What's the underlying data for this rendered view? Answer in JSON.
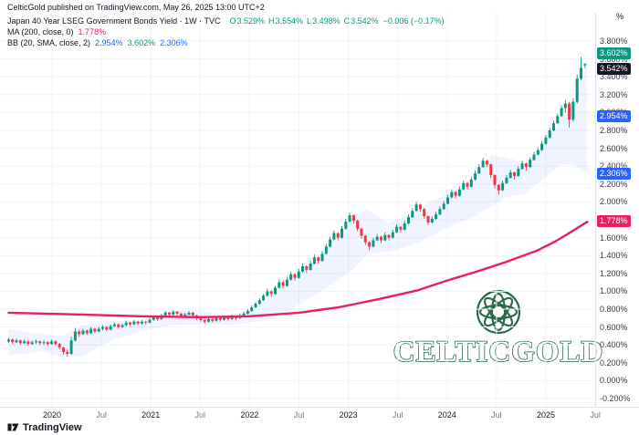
{
  "attribution": "CelticGold published on TradingView.com, May 26, 2025 13:00 UTC+2",
  "legend": {
    "symbol": "Japan 40 Year LSEG Government Bonds Yield · 1W · TVC",
    "ohlc": [
      {
        "k": "O",
        "v": "3.529%"
      },
      {
        "k": "H",
        "v": "3.554%"
      },
      {
        "k": "L",
        "v": "3.498%"
      },
      {
        "k": "C",
        "v": "3.542%"
      }
    ],
    "ohlc_color": "#089981",
    "change": "−0.006 (−0.17%)",
    "change_color": "#089981",
    "ma_label": "MA (200, close, 0)",
    "ma_value": "1.778%",
    "ma_color": "#e91e63",
    "bb_label": "BB (20, SMA, close, 2)",
    "bb_values": [
      {
        "text": "2.954%",
        "color": "#2962ff"
      },
      {
        "text": "3.602%",
        "color": "#089981"
      },
      {
        "text": "2.306%",
        "color": "#2962ff"
      }
    ]
  },
  "price_axis": {
    "unit": "%",
    "badges": [
      {
        "text": "3.602%",
        "value": 3.602,
        "color": "#089981",
        "dy": -5
      },
      {
        "text": "3.542%",
        "value": 3.542,
        "color": "#131722",
        "dy": 6
      },
      {
        "text": "2.954%",
        "value": 2.954,
        "color": "#2962ff",
        "dy": 0
      },
      {
        "text": "2.306%",
        "value": 2.306,
        "color": "#2962ff",
        "dy": 0
      },
      {
        "text": "1.778%",
        "value": 1.778,
        "color": "#e91e63",
        "dy": 0
      }
    ]
  },
  "footer": {
    "brand": "TradingView"
  },
  "watermark": {
    "text": "CELTICGOLD",
    "color": "#2e6b4e"
  },
  "chart_data": {
    "type": "candlestick",
    "title": "Japan 40 Year LSEG Government Bonds Yield",
    "timeframe": "1W",
    "exchange": "TVC",
    "ylabel": "%",
    "grid": true,
    "x_range": [
      2019.55,
      2025.62
    ],
    "y_range": [
      -0.28,
      3.99
    ],
    "y_ticks": [
      3.8,
      3.6,
      3.4,
      3.2,
      3.0,
      2.8,
      2.6,
      2.4,
      2.2,
      2.0,
      1.8,
      1.6,
      1.4,
      1.2,
      1.0,
      0.8,
      0.6,
      0.4,
      0.2,
      0.0,
      -0.2
    ],
    "time_ticks": [
      {
        "t": 2020.0,
        "label": "2020",
        "major": true
      },
      {
        "t": 2020.5,
        "label": "Jul",
        "major": false
      },
      {
        "t": 2021.0,
        "label": "2021",
        "major": true
      },
      {
        "t": 2021.5,
        "label": "Jul",
        "major": false
      },
      {
        "t": 2022.0,
        "label": "2022",
        "major": true
      },
      {
        "t": 2022.5,
        "label": "Jul",
        "major": false
      },
      {
        "t": 2023.0,
        "label": "2023",
        "major": true
      },
      {
        "t": 2023.5,
        "label": "Jul",
        "major": false
      },
      {
        "t": 2024.0,
        "label": "2024",
        "major": true
      },
      {
        "t": 2024.5,
        "label": "Jul",
        "major": false
      },
      {
        "t": 2025.0,
        "label": "2025",
        "major": true
      },
      {
        "t": 2025.5,
        "label": "Jul",
        "major": false
      }
    ],
    "up_color": "#089981",
    "down_color": "#f23645",
    "last": {
      "o": 3.529,
      "h": 3.554,
      "l": 3.498,
      "c": 3.542,
      "change": -0.006,
      "change_pct": -0.17
    },
    "candles_t0": 2019.56,
    "candles_dt": 0.0397,
    "candles": [
      [
        0.44,
        0.48,
        0.42,
        0.46
      ],
      [
        0.46,
        0.47,
        0.41,
        0.43
      ],
      [
        0.43,
        0.47,
        0.42,
        0.45
      ],
      [
        0.45,
        0.46,
        0.4,
        0.42
      ],
      [
        0.42,
        0.46,
        0.41,
        0.44
      ],
      [
        0.44,
        0.45,
        0.39,
        0.41
      ],
      [
        0.41,
        0.45,
        0.4,
        0.43
      ],
      [
        0.43,
        0.46,
        0.41,
        0.44
      ],
      [
        0.44,
        0.45,
        0.4,
        0.42
      ],
      [
        0.42,
        0.45,
        0.4,
        0.43
      ],
      [
        0.43,
        0.44,
        0.39,
        0.41
      ],
      [
        0.41,
        0.46,
        0.4,
        0.44
      ],
      [
        0.44,
        0.45,
        0.39,
        0.41
      ],
      [
        0.41,
        0.42,
        0.35,
        0.37
      ],
      [
        0.37,
        0.38,
        0.29,
        0.32
      ],
      [
        0.32,
        0.35,
        0.27,
        0.3
      ],
      [
        0.3,
        0.49,
        0.29,
        0.45
      ],
      [
        0.45,
        0.59,
        0.44,
        0.55
      ],
      [
        0.55,
        0.57,
        0.49,
        0.52
      ],
      [
        0.52,
        0.58,
        0.51,
        0.56
      ],
      [
        0.56,
        0.57,
        0.51,
        0.53
      ],
      [
        0.53,
        0.6,
        0.52,
        0.58
      ],
      [
        0.58,
        0.59,
        0.53,
        0.55
      ],
      [
        0.55,
        0.6,
        0.54,
        0.58
      ],
      [
        0.58,
        0.62,
        0.56,
        0.6
      ],
      [
        0.6,
        0.61,
        0.55,
        0.57
      ],
      [
        0.57,
        0.63,
        0.56,
        0.61
      ],
      [
        0.61,
        0.65,
        0.6,
        0.63
      ],
      [
        0.63,
        0.64,
        0.58,
        0.6
      ],
      [
        0.6,
        0.64,
        0.59,
        0.62
      ],
      [
        0.62,
        0.67,
        0.61,
        0.65
      ],
      [
        0.65,
        0.66,
        0.61,
        0.63
      ],
      [
        0.63,
        0.68,
        0.62,
        0.66
      ],
      [
        0.66,
        0.67,
        0.62,
        0.64
      ],
      [
        0.64,
        0.68,
        0.63,
        0.66
      ],
      [
        0.66,
        0.67,
        0.63,
        0.65
      ],
      [
        0.65,
        0.7,
        0.64,
        0.68
      ],
      [
        0.68,
        0.73,
        0.67,
        0.71
      ],
      [
        0.71,
        0.72,
        0.67,
        0.69
      ],
      [
        0.69,
        0.75,
        0.68,
        0.73
      ],
      [
        0.73,
        0.78,
        0.72,
        0.76
      ],
      [
        0.76,
        0.77,
        0.72,
        0.74
      ],
      [
        0.74,
        0.79,
        0.73,
        0.77
      ],
      [
        0.77,
        0.78,
        0.73,
        0.75
      ],
      [
        0.75,
        0.76,
        0.7,
        0.72
      ],
      [
        0.72,
        0.76,
        0.71,
        0.74
      ],
      [
        0.74,
        0.78,
        0.73,
        0.76
      ],
      [
        0.76,
        0.77,
        0.71,
        0.73
      ],
      [
        0.73,
        0.74,
        0.68,
        0.7
      ],
      [
        0.7,
        0.71,
        0.66,
        0.68
      ],
      [
        0.68,
        0.69,
        0.64,
        0.66
      ],
      [
        0.66,
        0.71,
        0.65,
        0.69
      ],
      [
        0.69,
        0.7,
        0.65,
        0.67
      ],
      [
        0.67,
        0.72,
        0.66,
        0.7
      ],
      [
        0.7,
        0.71,
        0.66,
        0.68
      ],
      [
        0.68,
        0.73,
        0.67,
        0.71
      ],
      [
        0.71,
        0.72,
        0.67,
        0.69
      ],
      [
        0.69,
        0.74,
        0.68,
        0.72
      ],
      [
        0.72,
        0.73,
        0.68,
        0.7
      ],
      [
        0.7,
        0.75,
        0.69,
        0.73
      ],
      [
        0.73,
        0.77,
        0.72,
        0.75
      ],
      [
        0.75,
        0.8,
        0.74,
        0.78
      ],
      [
        0.78,
        0.84,
        0.77,
        0.82
      ],
      [
        0.82,
        0.88,
        0.81,
        0.86
      ],
      [
        0.86,
        0.92,
        0.85,
        0.9
      ],
      [
        0.9,
        0.97,
        0.89,
        0.95
      ],
      [
        0.95,
        1.03,
        0.94,
        1.0
      ],
      [
        1.0,
        1.01,
        0.94,
        0.97
      ],
      [
        0.97,
        1.06,
        0.96,
        1.04
      ],
      [
        1.04,
        1.13,
        1.03,
        1.1
      ],
      [
        1.1,
        1.12,
        1.03,
        1.06
      ],
      [
        1.06,
        1.16,
        1.05,
        1.13
      ],
      [
        1.13,
        1.22,
        1.12,
        1.19
      ],
      [
        1.19,
        1.2,
        1.12,
        1.15
      ],
      [
        1.15,
        1.25,
        1.14,
        1.22
      ],
      [
        1.22,
        1.31,
        1.21,
        1.28
      ],
      [
        1.28,
        1.29,
        1.21,
        1.24
      ],
      [
        1.24,
        1.34,
        1.23,
        1.31
      ],
      [
        1.31,
        1.41,
        1.3,
        1.38
      ],
      [
        1.38,
        1.39,
        1.31,
        1.34
      ],
      [
        1.34,
        1.45,
        1.33,
        1.42
      ],
      [
        1.42,
        1.53,
        1.41,
        1.5
      ],
      [
        1.5,
        1.61,
        1.49,
        1.58
      ],
      [
        1.58,
        1.68,
        1.57,
        1.65
      ],
      [
        1.65,
        1.66,
        1.57,
        1.6
      ],
      [
        1.6,
        1.73,
        1.59,
        1.7
      ],
      [
        1.7,
        1.81,
        1.69,
        1.78
      ],
      [
        1.78,
        1.88,
        1.77,
        1.85
      ],
      [
        1.85,
        1.86,
        1.76,
        1.79
      ],
      [
        1.79,
        1.8,
        1.67,
        1.7
      ],
      [
        1.7,
        1.71,
        1.59,
        1.62
      ],
      [
        1.62,
        1.63,
        1.52,
        1.55
      ],
      [
        1.55,
        1.56,
        1.46,
        1.5
      ],
      [
        1.5,
        1.6,
        1.49,
        1.57
      ],
      [
        1.57,
        1.64,
        1.56,
        1.61
      ],
      [
        1.61,
        1.62,
        1.54,
        1.57
      ],
      [
        1.57,
        1.66,
        1.56,
        1.63
      ],
      [
        1.63,
        1.64,
        1.57,
        1.6
      ],
      [
        1.6,
        1.69,
        1.59,
        1.66
      ],
      [
        1.66,
        1.75,
        1.65,
        1.72
      ],
      [
        1.72,
        1.73,
        1.66,
        1.69
      ],
      [
        1.69,
        1.79,
        1.68,
        1.76
      ],
      [
        1.76,
        1.86,
        1.75,
        1.83
      ],
      [
        1.83,
        1.93,
        1.82,
        1.9
      ],
      [
        1.9,
        2.0,
        1.89,
        1.97
      ],
      [
        1.97,
        1.98,
        1.89,
        1.92
      ],
      [
        1.92,
        1.93,
        1.81,
        1.84
      ],
      [
        1.84,
        1.85,
        1.74,
        1.77
      ],
      [
        1.77,
        1.84,
        1.76,
        1.81
      ],
      [
        1.81,
        1.89,
        1.8,
        1.86
      ],
      [
        1.86,
        1.95,
        1.85,
        1.92
      ],
      [
        1.92,
        2.01,
        1.91,
        1.98
      ],
      [
        1.98,
        2.08,
        1.97,
        2.05
      ],
      [
        2.05,
        2.14,
        2.04,
        2.11
      ],
      [
        2.11,
        2.12,
        2.04,
        2.07
      ],
      [
        2.07,
        2.17,
        2.06,
        2.14
      ],
      [
        2.14,
        2.24,
        2.13,
        2.21
      ],
      [
        2.21,
        2.22,
        2.14,
        2.17
      ],
      [
        2.17,
        2.28,
        2.16,
        2.25
      ],
      [
        2.25,
        2.35,
        2.24,
        2.32
      ],
      [
        2.32,
        2.42,
        2.31,
        2.39
      ],
      [
        2.39,
        2.49,
        2.38,
        2.46
      ],
      [
        2.46,
        2.47,
        2.39,
        2.42
      ],
      [
        2.42,
        2.43,
        2.27,
        2.3
      ],
      [
        2.3,
        2.31,
        2.15,
        2.19
      ],
      [
        2.19,
        2.2,
        2.08,
        2.13
      ],
      [
        2.13,
        2.24,
        2.12,
        2.21
      ],
      [
        2.21,
        2.3,
        2.2,
        2.27
      ],
      [
        2.27,
        2.36,
        2.26,
        2.33
      ],
      [
        2.33,
        2.34,
        2.25,
        2.29
      ],
      [
        2.29,
        2.4,
        2.28,
        2.37
      ],
      [
        2.37,
        2.46,
        2.36,
        2.43
      ],
      [
        2.43,
        2.44,
        2.35,
        2.39
      ],
      [
        2.39,
        2.5,
        2.38,
        2.47
      ],
      [
        2.47,
        2.56,
        2.46,
        2.53
      ],
      [
        2.53,
        2.61,
        2.52,
        2.58
      ],
      [
        2.58,
        2.68,
        2.57,
        2.65
      ],
      [
        2.65,
        2.75,
        2.64,
        2.72
      ],
      [
        2.72,
        2.83,
        2.71,
        2.8
      ],
      [
        2.8,
        2.91,
        2.79,
        2.88
      ],
      [
        2.88,
        2.99,
        2.87,
        2.96
      ],
      [
        2.96,
        3.08,
        2.95,
        3.05
      ],
      [
        3.05,
        3.14,
        3.0,
        3.1
      ],
      [
        3.1,
        3.12,
        2.83,
        2.92
      ],
      [
        2.92,
        3.16,
        2.9,
        3.12
      ],
      [
        3.12,
        3.42,
        3.1,
        3.38
      ],
      [
        3.38,
        3.62,
        3.36,
        3.5
      ],
      [
        3.529,
        3.554,
        3.498,
        3.542
      ]
    ],
    "ma200": {
      "label": "MA (200, close, 0)",
      "color": "#e91e63",
      "points": [
        [
          2019.56,
          0.76
        ],
        [
          2020.3,
          0.74
        ],
        [
          2020.9,
          0.72
        ],
        [
          2021.5,
          0.71
        ],
        [
          2022.0,
          0.72
        ],
        [
          2022.5,
          0.76
        ],
        [
          2022.9,
          0.82
        ],
        [
          2023.3,
          0.91
        ],
        [
          2023.7,
          1.01
        ],
        [
          2024.0,
          1.12
        ],
        [
          2024.3,
          1.22
        ],
        [
          2024.6,
          1.33
        ],
        [
          2024.9,
          1.45
        ],
        [
          2025.1,
          1.56
        ],
        [
          2025.25,
          1.66
        ],
        [
          2025.42,
          1.778
        ]
      ]
    },
    "bollinger": {
      "label": "BB (20, SMA, close, 2)",
      "fill": "#2962ff",
      "fill_opacity": 0.07,
      "points": [
        [
          2019.56,
          0.58,
          0.28
        ],
        [
          2019.9,
          0.52,
          0.33
        ],
        [
          2020.1,
          0.5,
          0.26
        ],
        [
          2020.3,
          0.62,
          0.27
        ],
        [
          2020.6,
          0.66,
          0.45
        ],
        [
          2020.9,
          0.68,
          0.55
        ],
        [
          2021.2,
          0.78,
          0.62
        ],
        [
          2021.5,
          0.79,
          0.63
        ],
        [
          2021.8,
          0.74,
          0.62
        ],
        [
          2022.0,
          0.78,
          0.65
        ],
        [
          2022.2,
          0.95,
          0.68
        ],
        [
          2022.5,
          1.2,
          0.85
        ],
        [
          2022.8,
          1.45,
          1.05
        ],
        [
          2023.05,
          1.85,
          1.25
        ],
        [
          2023.2,
          1.92,
          1.42
        ],
        [
          2023.4,
          1.76,
          1.44
        ],
        [
          2023.6,
          1.85,
          1.5
        ],
        [
          2023.85,
          2.02,
          1.62
        ],
        [
          2024.05,
          2.1,
          1.74
        ],
        [
          2024.25,
          2.28,
          1.82
        ],
        [
          2024.45,
          2.52,
          1.95
        ],
        [
          2024.6,
          2.5,
          2.05
        ],
        [
          2024.8,
          2.42,
          2.1
        ],
        [
          2025.0,
          2.68,
          2.28
        ],
        [
          2025.15,
          2.92,
          2.42
        ],
        [
          2025.28,
          3.1,
          2.42
        ],
        [
          2025.42,
          3.602,
          2.306
        ]
      ]
    }
  }
}
